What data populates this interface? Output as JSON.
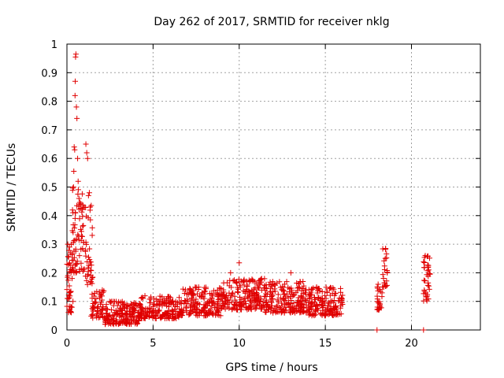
{
  "chart_data": {
    "type": "scatter",
    "title": "Day 262 of 2017, SRMTID for receiver nklg",
    "xlabel": "GPS time / hours",
    "ylabel": "SRMTID / TECUs",
    "xlim": [
      0,
      24
    ],
    "ylim": [
      0,
      1
    ],
    "x_ticks": [
      0,
      5,
      10,
      15,
      20
    ],
    "x_tick_labels": [
      "0",
      "5",
      "10",
      "15",
      "20"
    ],
    "y_ticks": [
      0,
      0.1,
      0.2,
      0.3,
      0.4,
      0.5,
      0.6,
      0.7,
      0.8,
      0.9,
      1
    ],
    "y_tick_labels": [
      "0",
      "0.1",
      "0.2",
      "0.3",
      "0.4",
      "0.5",
      "0.6",
      "0.7",
      "0.8",
      "0.9",
      "1"
    ],
    "grid": true,
    "marker": "plus",
    "marker_color": "#e00000",
    "series": [
      {
        "name": "SRMTID",
        "clusters": [
          {
            "x_range": [
              0.0,
              0.3
            ],
            "y_range": [
              0.06,
              0.3
            ],
            "count": 40
          },
          {
            "x_range": [
              0.3,
              1.0
            ],
            "y_range": [
              0.2,
              0.5
            ],
            "count": 70
          },
          {
            "x_range": [
              1.0,
              1.5
            ],
            "y_range": [
              0.15,
              0.45
            ],
            "count": 40
          },
          {
            "x_range": [
              1.4,
              2.2
            ],
            "y_range": [
              0.04,
              0.14
            ],
            "count": 55
          },
          {
            "x_range": [
              2.2,
              4.2
            ],
            "y_range": [
              0.02,
              0.1
            ],
            "count": 170
          },
          {
            "x_range": [
              4.2,
              6.5
            ],
            "y_range": [
              0.04,
              0.12
            ],
            "count": 170
          },
          {
            "x_range": [
              6.5,
              9.0
            ],
            "y_range": [
              0.05,
              0.15
            ],
            "count": 190
          },
          {
            "x_range": [
              9.0,
              11.5
            ],
            "y_range": [
              0.07,
              0.18
            ],
            "count": 190
          },
          {
            "x_range": [
              11.5,
              14.0
            ],
            "y_range": [
              0.06,
              0.17
            ],
            "count": 190
          },
          {
            "x_range": [
              14.0,
              16.0
            ],
            "y_range": [
              0.05,
              0.15
            ],
            "count": 160
          },
          {
            "x_range": [
              18.0,
              18.3
            ],
            "y_range": [
              0.07,
              0.16
            ],
            "count": 25
          },
          {
            "x_range": [
              18.3,
              18.6
            ],
            "y_range": [
              0.15,
              0.29
            ],
            "count": 22
          },
          {
            "x_range": [
              20.7,
              21.1
            ],
            "y_range": [
              0.1,
              0.26
            ],
            "count": 35
          }
        ],
        "points": [
          [
            0.05,
            0.3
          ],
          [
            0.15,
            0.29
          ],
          [
            0.2,
            0.27
          ],
          [
            0.3,
            0.18
          ],
          [
            0.35,
            0.1
          ],
          [
            0.35,
            0.41
          ],
          [
            0.38,
            0.5
          ],
          [
            0.4,
            0.555
          ],
          [
            0.42,
            0.64
          ],
          [
            0.45,
            0.63
          ],
          [
            0.47,
            0.82
          ],
          [
            0.48,
            0.87
          ],
          [
            0.5,
            0.955
          ],
          [
            0.52,
            0.965
          ],
          [
            0.55,
            0.78
          ],
          [
            0.58,
            0.74
          ],
          [
            0.62,
            0.6
          ],
          [
            0.65,
            0.52
          ],
          [
            0.7,
            0.46
          ],
          [
            0.72,
            0.44
          ],
          [
            1.1,
            0.65
          ],
          [
            1.15,
            0.62
          ],
          [
            1.2,
            0.6
          ],
          [
            1.25,
            0.47
          ],
          [
            1.3,
            0.48
          ],
          [
            1.35,
            0.43
          ],
          [
            18.0,
            0.0
          ],
          [
            20.7,
            0.0
          ],
          [
            18.5,
            0.285
          ],
          [
            21.0,
            0.21
          ],
          [
            20.8,
            0.26
          ],
          [
            10.0,
            0.235
          ],
          [
            9.5,
            0.2
          ],
          [
            13.0,
            0.2
          ]
        ]
      }
    ]
  }
}
